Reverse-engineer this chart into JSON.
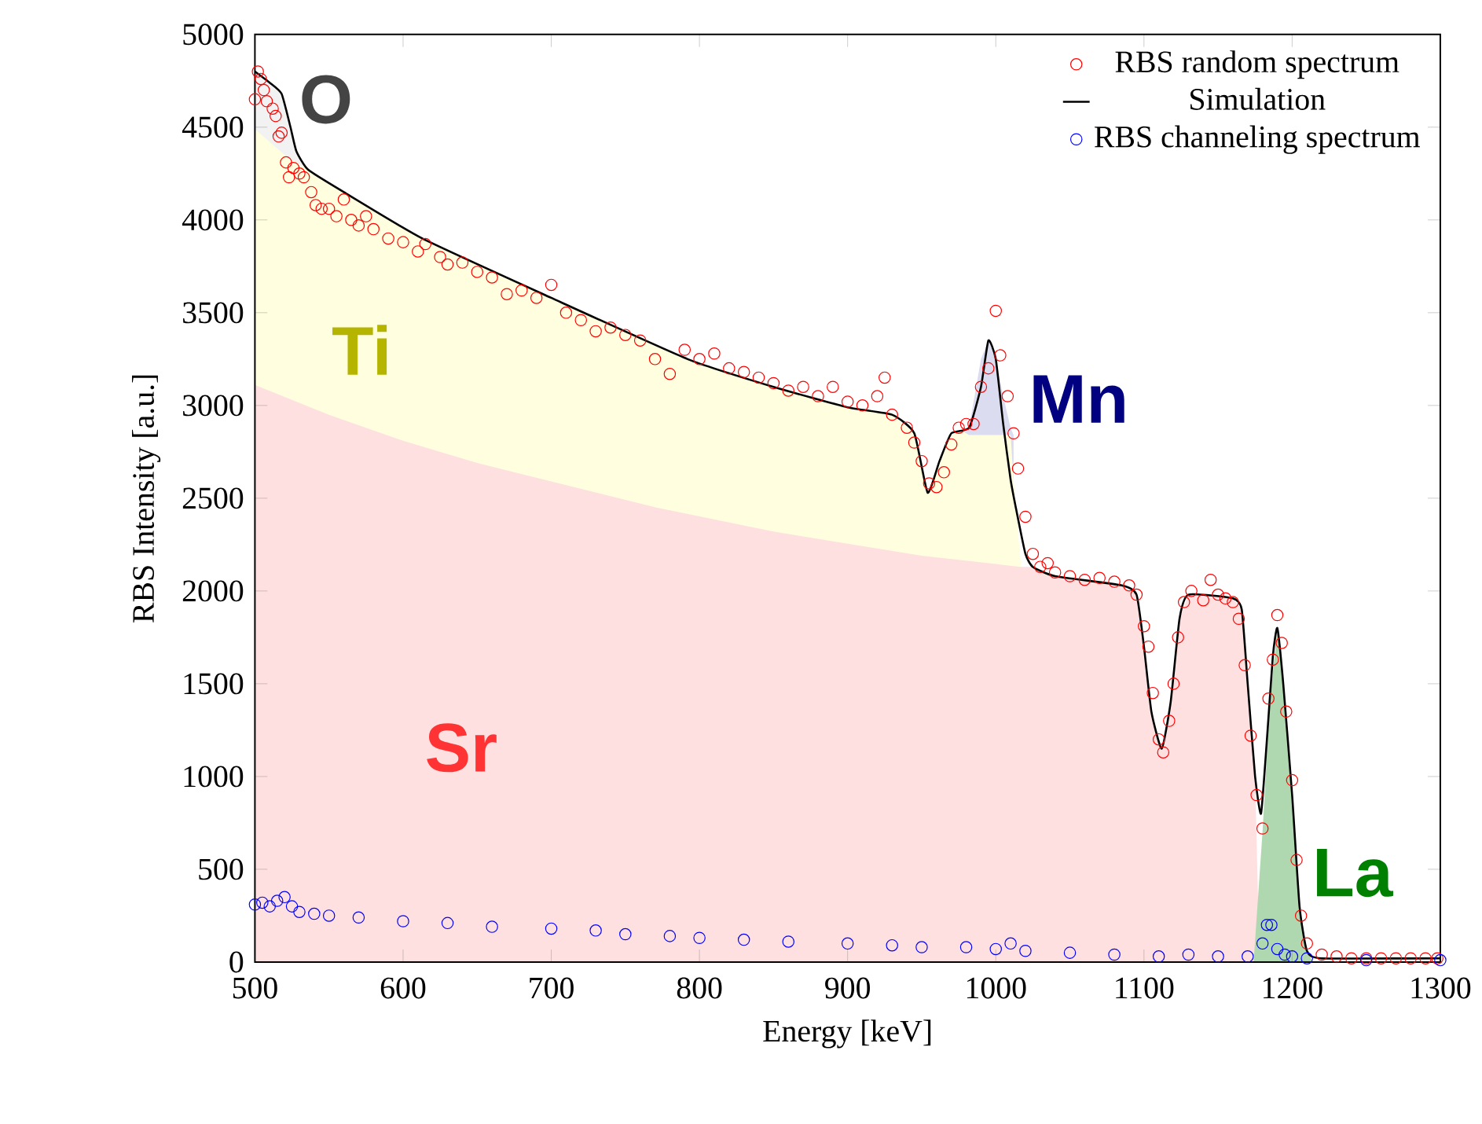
{
  "chart_data": {
    "type": "scatter",
    "xlabel": "Energy [keV]",
    "ylabel": "RBS Intensity [a.u.]",
    "xlim": [
      500,
      1300
    ],
    "ylim": [
      0,
      5000
    ],
    "xticks": [
      500,
      600,
      700,
      800,
      900,
      1000,
      1100,
      1200,
      1300
    ],
    "yticks": [
      0,
      500,
      1000,
      1500,
      2000,
      2500,
      3000,
      3500,
      4000,
      4500,
      5000
    ],
    "legend": "top right",
    "series": [
      {
        "name": "O",
        "type": "area",
        "color": "#f2f2f2",
        "x": [
          500,
          510,
          518,
          524,
          528,
          536,
          540
        ],
        "values": [
          4800,
          4740,
          4680,
          4500,
          4370,
          4270,
          4250
        ]
      },
      {
        "name": "Mn",
        "type": "area",
        "color": "#dcdcf0",
        "x": [
          978,
          982,
          990,
          995,
          1000,
          1005,
          1010,
          1012
        ],
        "values": [
          2860,
          2880,
          3250,
          3350,
          3250,
          3050,
          2880,
          2840
        ]
      },
      {
        "name": "Ti",
        "type": "area",
        "color": "#ffffe0",
        "x": [
          500,
          520,
          536,
          560,
          613,
          700,
          792,
          850,
          900,
          930,
          945,
          954,
          962,
          970,
          978,
          982,
          1010,
          1012,
          1014,
          1017
        ],
        "values": [
          4490,
          4350,
          4270,
          4150,
          3900,
          3580,
          3250,
          3100,
          2990,
          2950,
          2850,
          2530,
          2700,
          2850,
          2860,
          2840,
          2840,
          2600,
          2430,
          2130
        ]
      },
      {
        "name": "Sr",
        "type": "area",
        "color": "#ffe0e0",
        "x": [
          500,
          550,
          600,
          650,
          700,
          771,
          850,
          950,
          1017,
          1025,
          1040,
          1085,
          1095,
          1100,
          1105,
          1112,
          1118,
          1124,
          1130,
          1160,
          1166,
          1170,
          1175,
          1178
        ],
        "values": [
          3110,
          2950,
          2810,
          2690,
          2590,
          2450,
          2320,
          2190,
          2130,
          2130,
          2080,
          2030,
          1980,
          1700,
          1350,
          1150,
          1400,
          1850,
          1980,
          1960,
          1900,
          1500,
          1000,
          0
        ]
      },
      {
        "name": "La",
        "type": "area",
        "color": "#b0d8b0",
        "x": [
          1174,
          1180,
          1185,
          1190,
          1194,
          1200,
          1205,
          1210,
          1214
        ],
        "values": [
          0,
          700,
          1400,
          1800,
          1500,
          900,
          300,
          60,
          0
        ]
      },
      {
        "name": "RBS random spectrum",
        "marker": "circle",
        "color": "#ff0000",
        "x": [
          500,
          502,
          504,
          506,
          508,
          512,
          514,
          516,
          518,
          521,
          523,
          526,
          530,
          533,
          538,
          541,
          545,
          550,
          555,
          560,
          565,
          570,
          575,
          580,
          590,
          600,
          610,
          615,
          625,
          630,
          640,
          650,
          660,
          670,
          680,
          690,
          700,
          710,
          720,
          730,
          740,
          750,
          760,
          770,
          780,
          790,
          800,
          810,
          820,
          830,
          840,
          850,
          860,
          870,
          880,
          890,
          900,
          910,
          920,
          925,
          930,
          940,
          945,
          950,
          955,
          960,
          965,
          970,
          975,
          980,
          985,
          990,
          995,
          1000,
          1003,
          1008,
          1012,
          1015,
          1020,
          1025,
          1030,
          1035,
          1040,
          1050,
          1060,
          1070,
          1080,
          1090,
          1095,
          1100,
          1103,
          1106,
          1110,
          1113,
          1117,
          1120,
          1123,
          1127,
          1132,
          1140,
          1145,
          1150,
          1155,
          1160,
          1164,
          1168,
          1172,
          1176,
          1180,
          1184,
          1187,
          1190,
          1193,
          1196,
          1200,
          1203,
          1206,
          1210,
          1220,
          1230,
          1240,
          1250,
          1260,
          1270,
          1280,
          1290,
          1298
        ],
        "values": [
          4650,
          4800,
          4760,
          4700,
          4640,
          4600,
          4560,
          4450,
          4470,
          4310,
          4230,
          4280,
          4250,
          4230,
          4150,
          4080,
          4060,
          4060,
          4020,
          4110,
          4000,
          3970,
          4020,
          3950,
          3900,
          3880,
          3830,
          3870,
          3800,
          3760,
          3770,
          3720,
          3690,
          3600,
          3620,
          3580,
          3650,
          3500,
          3460,
          3400,
          3420,
          3380,
          3350,
          3250,
          3170,
          3300,
          3250,
          3280,
          3200,
          3180,
          3150,
          3120,
          3080,
          3100,
          3050,
          3100,
          3020,
          3000,
          3050,
          3150,
          2950,
          2880,
          2800,
          2700,
          2580,
          2560,
          2640,
          2790,
          2880,
          2900,
          2900,
          3100,
          3200,
          3510,
          3270,
          3050,
          2850,
          2660,
          2400,
          2200,
          2130,
          2150,
          2100,
          2080,
          2060,
          2070,
          2050,
          2030,
          1980,
          1810,
          1700,
          1450,
          1200,
          1130,
          1300,
          1500,
          1750,
          1940,
          2000,
          1950,
          2060,
          1980,
          1960,
          1940,
          1850,
          1600,
          1220,
          900,
          720,
          1420,
          1630,
          1870,
          1720,
          1350,
          980,
          550,
          250,
          100,
          40,
          30,
          20,
          20,
          20,
          20,
          20,
          20,
          20
        ]
      },
      {
        "name": "Simulation",
        "type": "line",
        "line_style": "solid",
        "color": "#000000",
        "x": [
          500,
          510,
          518,
          524,
          528,
          536,
          560,
          613,
          700,
          792,
          850,
          900,
          930,
          945,
          954,
          962,
          970,
          982,
          990,
          995,
          1000,
          1005,
          1010,
          1014,
          1020,
          1025,
          1040,
          1085,
          1095,
          1100,
          1105,
          1112,
          1118,
          1124,
          1130,
          1160,
          1166,
          1170,
          1175,
          1179,
          1183,
          1187,
          1190,
          1194,
          1200,
          1205,
          1210,
          1220,
          1300
        ],
        "values": [
          4800,
          4740,
          4680,
          4500,
          4370,
          4270,
          4150,
          3900,
          3580,
          3250,
          3100,
          2990,
          2950,
          2850,
          2530,
          2700,
          2850,
          2880,
          3100,
          3350,
          3250,
          2900,
          2600,
          2430,
          2200,
          2130,
          2080,
          2030,
          1980,
          1700,
          1350,
          1150,
          1400,
          1850,
          1980,
          1960,
          1900,
          1500,
          1000,
          800,
          1200,
          1650,
          1800,
          1500,
          900,
          300,
          60,
          20,
          20
        ]
      },
      {
        "name": "RBS channeling spectrum",
        "marker": "circle",
        "color": "#0000ff",
        "x": [
          500,
          505,
          510,
          515,
          520,
          525,
          530,
          540,
          550,
          570,
          600,
          630,
          660,
          700,
          730,
          750,
          780,
          800,
          830,
          860,
          900,
          930,
          950,
          980,
          1000,
          1010,
          1020,
          1050,
          1080,
          1110,
          1130,
          1150,
          1170,
          1180,
          1183,
          1186,
          1190,
          1195,
          1200,
          1210,
          1250,
          1300
        ],
        "values": [
          310,
          320,
          300,
          330,
          350,
          300,
          270,
          260,
          250,
          240,
          220,
          210,
          190,
          180,
          170,
          150,
          140,
          130,
          120,
          110,
          100,
          90,
          80,
          80,
          70,
          100,
          60,
          50,
          40,
          30,
          40,
          30,
          30,
          100,
          200,
          200,
          70,
          40,
          30,
          20,
          10,
          10
        ]
      }
    ]
  }
}
